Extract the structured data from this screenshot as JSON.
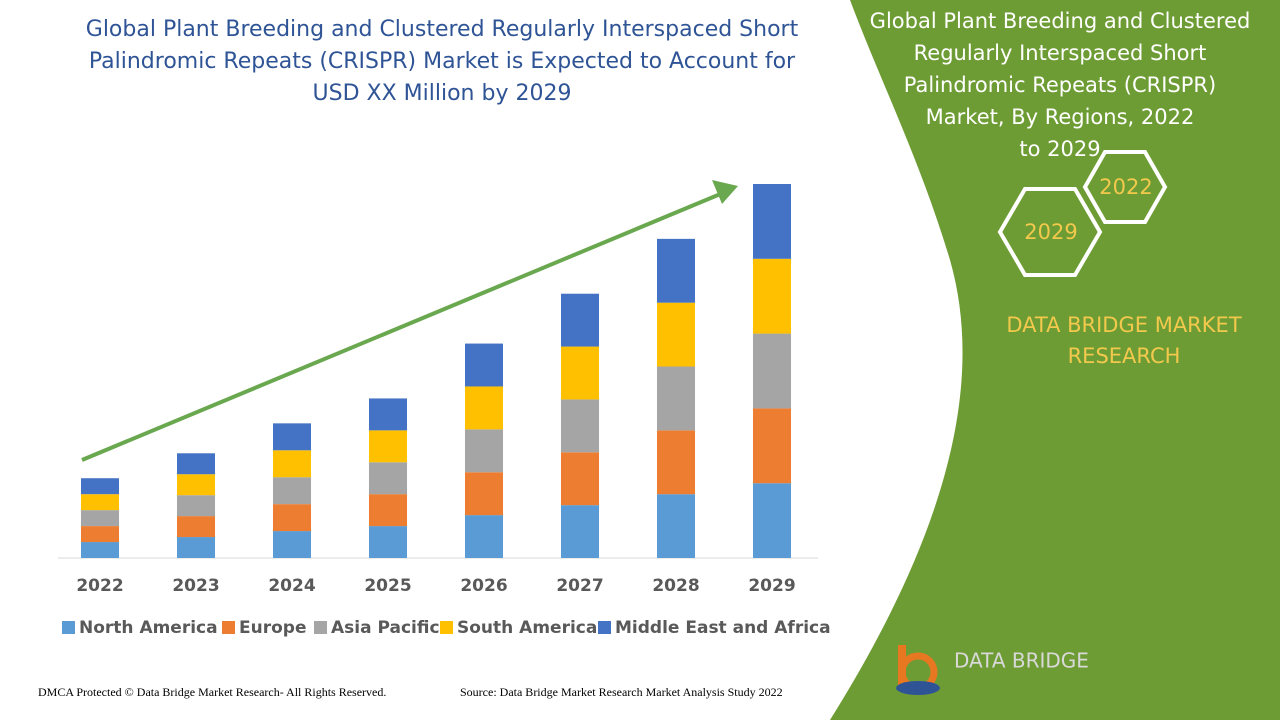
{
  "chart_data": {
    "type": "stacked_bar",
    "title": [
      "Global Plant Breeding and Clustered Regularly Interspaced Short",
      "Palindromic Repeats (CRISPR) Market is Expected to Account for",
      "USD XX Million by 2029"
    ],
    "categories": [
      "2022",
      "2023",
      "2024",
      "2025",
      "2026",
      "2027",
      "2028",
      "2029"
    ],
    "series": [
      {
        "name": "North America",
        "color": "#5b9bd5",
        "values": [
          16,
          21,
          27,
          32,
          43,
          53,
          64,
          75
        ]
      },
      {
        "name": "Europe",
        "color": "#ed7d31",
        "values": [
          16,
          21,
          27,
          32,
          43,
          53,
          64,
          75
        ]
      },
      {
        "name": "Asia Pacific",
        "color": "#a5a5a5",
        "values": [
          16,
          21,
          27,
          32,
          43,
          53,
          64,
          75
        ]
      },
      {
        "name": "South America",
        "color": "#ffc000",
        "values": [
          16,
          21,
          27,
          32,
          43,
          53,
          64,
          75
        ]
      },
      {
        "name": "Middle East and Africa",
        "color": "#4472c4",
        "values": [
          16,
          21,
          27,
          32,
          43,
          53,
          64,
          75
        ]
      }
    ],
    "legend": "bottom"
  },
  "side_panel": {
    "title": [
      "Global Plant Breeding and Clustered",
      "Regularly Interspaced Short",
      "Palindromic Repeats (CRISPR)",
      "Market, By Regions, 2022",
      "to 2029"
    ],
    "hex_start": "2022",
    "hex_end": "2029",
    "brand": [
      "DATA BRIDGE MARKET",
      "RESEARCH"
    ],
    "logo_text": "DATA BRIDGE"
  },
  "footer": {
    "left": "DMCA Protected © Data Bridge Market Research- All Rights Reserved.",
    "right": "Source: Data Bridge Market Research Market Analysis Study 2022"
  }
}
